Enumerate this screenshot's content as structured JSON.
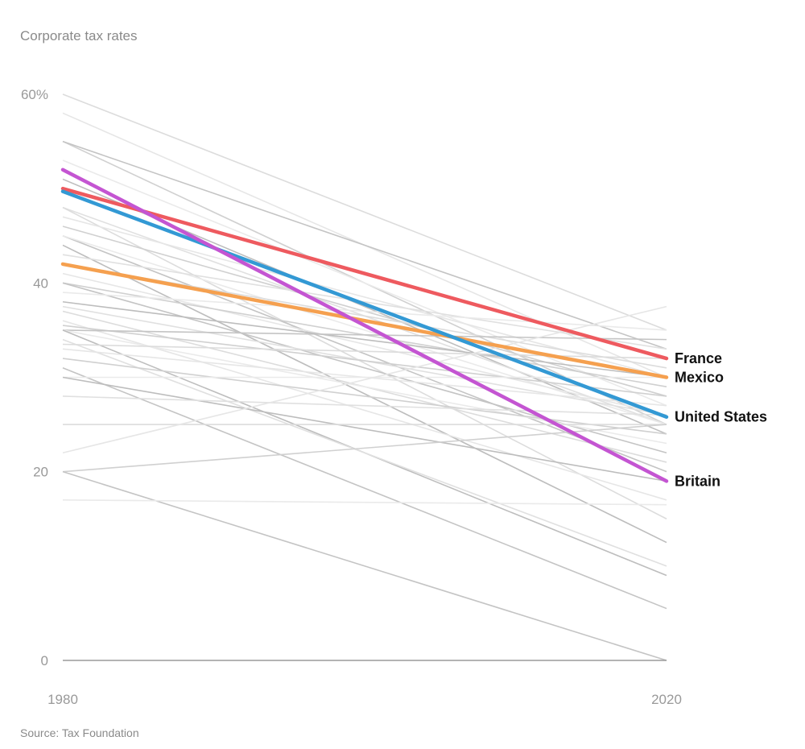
{
  "chart_data": {
    "type": "line",
    "ylabel": "Corporate tax rates",
    "source": "Source: Tax Foundation",
    "x": [
      "1980",
      "2020"
    ],
    "ylim": [
      0,
      60
    ],
    "y_ticks": [
      {
        "value": 0,
        "label": "0"
      },
      {
        "value": 20,
        "label": "20"
      },
      {
        "value": 40,
        "label": "40"
      },
      {
        "value": 60,
        "label": "60%"
      }
    ],
    "grid": false,
    "highlight_series": [
      {
        "name": "France",
        "values": [
          50,
          32
        ],
        "color": "#ee5a5f"
      },
      {
        "name": "Mexico",
        "values": [
          42,
          30
        ],
        "color": "#f5a04f"
      },
      {
        "name": "United States",
        "values": [
          49.7,
          25.8
        ],
        "color": "#3399d4"
      },
      {
        "name": "Britain",
        "values": [
          52,
          19
        ],
        "color": "#c455d2"
      }
    ],
    "background_series": [
      {
        "values": [
          60,
          35
        ]
      },
      {
        "values": [
          58,
          30
        ]
      },
      {
        "values": [
          55,
          25
        ]
      },
      {
        "values": [
          55,
          33
        ]
      },
      {
        "values": [
          53,
          27
        ]
      },
      {
        "values": [
          51,
          24
        ]
      },
      {
        "values": [
          48,
          25
        ]
      },
      {
        "values": [
          48,
          15
        ]
      },
      {
        "values": [
          47,
          30
        ]
      },
      {
        "values": [
          46,
          28
        ]
      },
      {
        "values": [
          45,
          20
        ]
      },
      {
        "values": [
          45,
          25
        ]
      },
      {
        "values": [
          44,
          12.5
        ]
      },
      {
        "values": [
          43,
          33
        ]
      },
      {
        "values": [
          42,
          31
        ]
      },
      {
        "values": [
          41,
          26
        ]
      },
      {
        "values": [
          40,
          29
        ]
      },
      {
        "values": [
          40,
          22
        ]
      },
      {
        "values": [
          39,
          35
        ]
      },
      {
        "values": [
          38,
          30
        ]
      },
      {
        "values": [
          37.5,
          26
        ]
      },
      {
        "values": [
          37,
          21
        ]
      },
      {
        "values": [
          36,
          17
        ]
      },
      {
        "values": [
          35.5,
          28
        ]
      },
      {
        "values": [
          35,
          34
        ]
      },
      {
        "values": [
          35,
          23
        ]
      },
      {
        "values": [
          35,
          9
        ]
      },
      {
        "values": [
          34,
          10
        ]
      },
      {
        "values": [
          33.5,
          32
        ]
      },
      {
        "values": [
          33,
          27
        ]
      },
      {
        "values": [
          32,
          24
        ]
      },
      {
        "values": [
          31,
          5.5
        ]
      },
      {
        "values": [
          30,
          30
        ]
      },
      {
        "values": [
          30,
          19
        ]
      },
      {
        "values": [
          28,
          26
        ]
      },
      {
        "values": [
          25,
          25
        ]
      },
      {
        "values": [
          22,
          37.5
        ]
      },
      {
        "values": [
          20,
          25
        ]
      },
      {
        "values": [
          20,
          0
        ]
      },
      {
        "values": [
          17,
          16.5
        ]
      }
    ]
  }
}
